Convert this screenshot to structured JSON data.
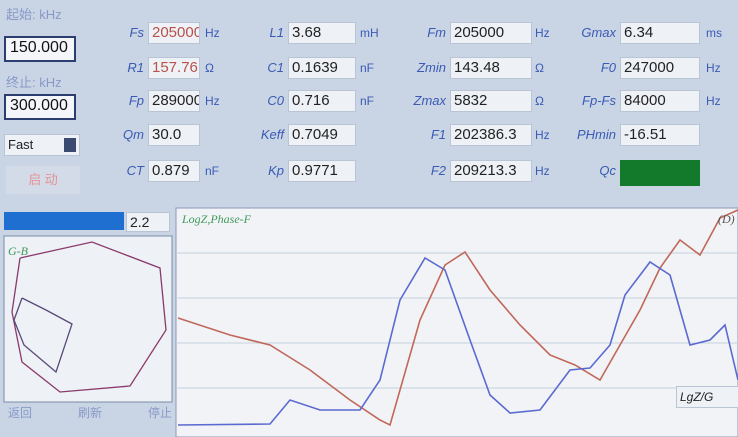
{
  "left_panel": {
    "start_label": "起始: kHz",
    "start_value": "150.000",
    "stop_label": "终止: kHz",
    "stop_value": "300.000",
    "mode": "Fast",
    "start_button": "启 动",
    "progress_value": "2.2",
    "gb_title": "G-B",
    "buttons": [
      "返回",
      "刷新",
      "停止"
    ]
  },
  "params": [
    [
      {
        "label": "Fs",
        "value": "205000",
        "unit": "Hz"
      },
      {
        "label": "L1",
        "value": "3.68",
        "unit": "mH"
      },
      {
        "label": "Fm",
        "value": "205000",
        "unit": "Hz"
      },
      {
        "label": "Gmax",
        "value": "6.34",
        "unit": "ms"
      }
    ],
    [
      {
        "label": "R1",
        "value": "157.76",
        "unit": "Ω"
      },
      {
        "label": "C1",
        "value": "0.1639",
        "unit": "nF"
      },
      {
        "label": "Zmin",
        "value": "143.48",
        "unit": "Ω"
      },
      {
        "label": "F0",
        "value": "247000",
        "unit": "Hz"
      }
    ],
    [
      {
        "label": "Fp",
        "value": "289000",
        "unit": "Hz"
      },
      {
        "label": "C0",
        "value": "0.716",
        "unit": "nF"
      },
      {
        "label": "Zmax",
        "value": "5832",
        "unit": "Ω"
      },
      {
        "label": "Fp-Fs",
        "value": "84000",
        "unit": "Hz"
      }
    ],
    [
      {
        "label": "Qm",
        "value": "30.0"
      },
      {
        "label": "Keff",
        "value": "0.7049"
      },
      {
        "label": "F1",
        "value": "202386.3",
        "unit": "Hz"
      },
      {
        "label": "PHmin",
        "value": "-16.51"
      }
    ],
    [
      {
        "label": "CT",
        "value": "0.879",
        "unit": "nF"
      },
      {
        "label": "Kp",
        "value": "0.9771"
      },
      {
        "label": "F2",
        "value": "209213.3",
        "unit": "Hz"
      },
      {
        "label": "Qc"
      }
    ]
  ],
  "plot": {
    "title": "LogZ,Phase-F",
    "corner_label": "(D)",
    "legend": "LgZ/G"
  }
}
